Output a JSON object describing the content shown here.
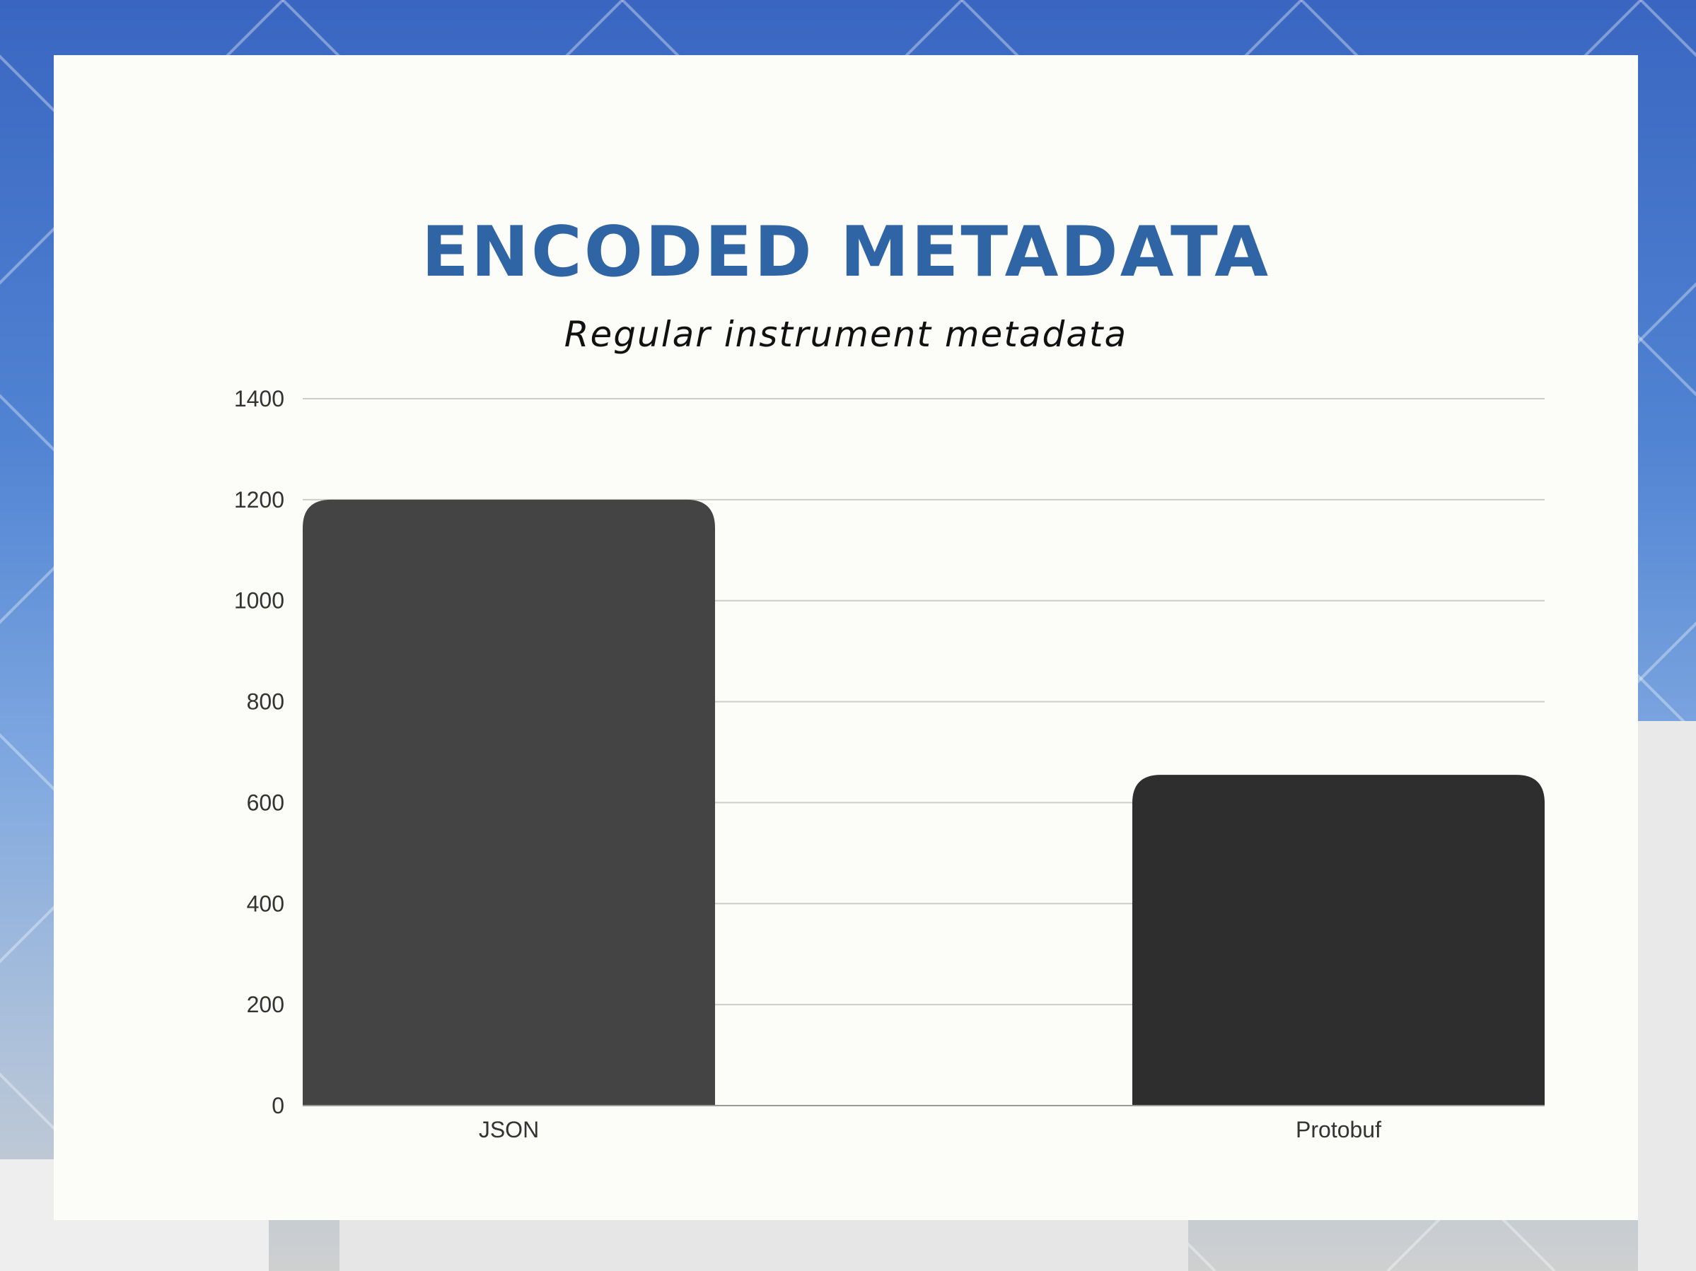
{
  "slide": {
    "title": "ENCODED METADATA",
    "subtitle": "Regular instrument metadata"
  },
  "colors": {
    "title": "#2f64a5",
    "background_sky": "#3a66c1",
    "card": "#fcfcf8",
    "gridline": "#cccccc",
    "bar_json": "#444444",
    "bar_protobuf": "#2e2e2e"
  },
  "chart_data": {
    "type": "bar",
    "title": "ENCODED METADATA",
    "subtitle": "Regular instrument metadata",
    "categories": [
      "JSON",
      "Protobuf"
    ],
    "values": [
      1200,
      655
    ],
    "bar_colors": [
      "#444444",
      "#2e2e2e"
    ],
    "ylim": [
      0,
      1400
    ],
    "yticks": [
      0,
      200,
      400,
      600,
      800,
      1000,
      1200,
      1400
    ],
    "grid": true,
    "legend": "none"
  }
}
